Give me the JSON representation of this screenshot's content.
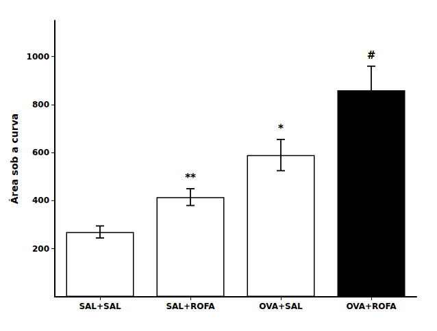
{
  "chart_data": {
    "type": "bar",
    "categories": [
      "SAL+SAL",
      "SAL+ROFA",
      "OVA+SAL",
      "OVA+ROFA"
    ],
    "values": [
      270,
      415,
      590,
      860
    ],
    "errors": [
      25,
      35,
      65,
      100
    ],
    "colors": [
      "#ffffff",
      "#ffffff",
      "#ffffff",
      "#000000"
    ],
    "annotations": [
      null,
      "**",
      "*",
      "#"
    ],
    "ylabel": "Área sob a curva",
    "ylim": [
      0,
      1150
    ],
    "yticks": [
      200,
      400,
      600,
      800,
      1000
    ],
    "grid": false
  }
}
